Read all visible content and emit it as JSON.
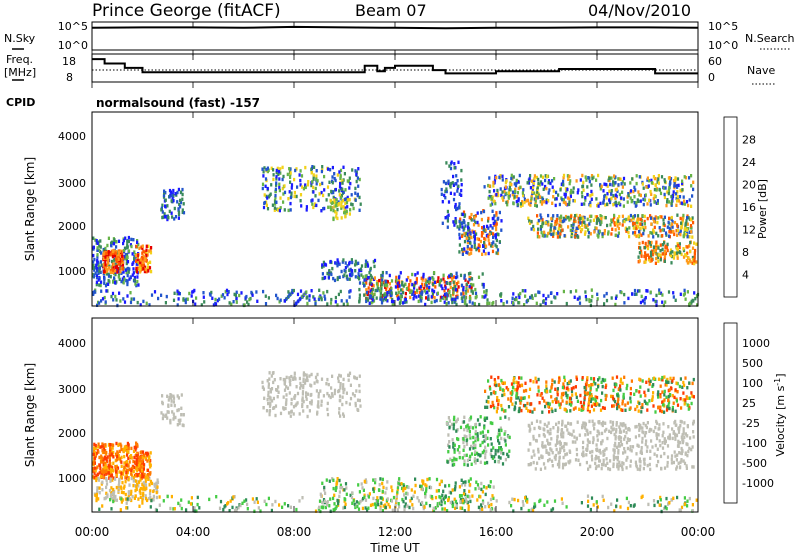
{
  "header": {
    "station": "Prince George (fitACF)",
    "beam": "Beam 07",
    "date": "04/Nov/2010"
  },
  "left_labels": {
    "nsky": "N.Sky",
    "freq_line1": "Freq.",
    "freq_line2": "[MHz]",
    "cpid": "CPID"
  },
  "right_labels": {
    "nsearch": "N.Search",
    "nave": "Nave"
  },
  "cpid_text": "normalsound (fast) -157",
  "colors": {
    "power_scale": [
      "#1a1aff",
      "#2255cc",
      "#3a8a5a",
      "#66b347",
      "#f2d21a",
      "#ff9a1a",
      "#ff5a00",
      "#e60000"
    ],
    "velocity_scale": [
      "#1a33cc",
      "#2255aa",
      "#2e8b57",
      "#44cc44",
      "#bebeb4",
      "#ffb000",
      "#ff7a00",
      "#ff3a00",
      "#e60000"
    ]
  },
  "chart_data": [
    {
      "type": "line",
      "name": "noise",
      "ylabel_left": "N.Sky",
      "ylabel_right": "N.Search",
      "yticks_left": [
        "10^5",
        "10^0"
      ],
      "yticks_right": [
        "10^5",
        "10^0"
      ],
      "x_range_hours": [
        0,
        24
      ],
      "series": [
        {
          "x": [
            0,
            2,
            4,
            6,
            8,
            10,
            12,
            14,
            16,
            18,
            20,
            22,
            24
          ],
          "y": [
            4.2,
            4.3,
            4.3,
            4.2,
            4.4,
            4.3,
            4.2,
            4.1,
            4.2,
            4.2,
            4.3,
            4.3,
            4.2
          ]
        }
      ]
    },
    {
      "type": "line",
      "name": "frequency",
      "ylabel_left": "Freq. [MHz]",
      "ylabel_right": "Nave",
      "yticks_left": [
        "18",
        "8"
      ],
      "yticks_right": [
        "60",
        "0"
      ],
      "x_range_hours": [
        0,
        24
      ],
      "series": [
        {
          "x": [
            0,
            0.5,
            0.5,
            1.3,
            1.3,
            2.0,
            2.0,
            10.8,
            10.8,
            11.3,
            11.3,
            11.6,
            11.6,
            12.0,
            12.0,
            13.5,
            13.5,
            14.0,
            14.0,
            16.0,
            16.0,
            18.5,
            18.5,
            22.3,
            22.3,
            24.0
          ],
          "y": [
            17.5,
            17.5,
            15.5,
            15.5,
            13.5,
            13.5,
            11.5,
            11.5,
            14.5,
            14.5,
            12.0,
            12.0,
            13.5,
            13.5,
            14.5,
            14.5,
            12.5,
            12.5,
            11.0,
            11.0,
            12.0,
            12.0,
            13.0,
            13.0,
            11.0,
            11.0
          ]
        }
      ]
    },
    {
      "type": "heatmap",
      "name": "power",
      "ylabel": "Slant Range [km]",
      "yticks": [
        "1000",
        "2000",
        "3000",
        "4000"
      ],
      "ylim": [
        200,
        4600
      ],
      "colorbar_label": "Power [dB]",
      "colorbar_ticks": [
        "4",
        "8",
        "12",
        "16",
        "20",
        "24",
        "28"
      ],
      "zlim": [
        0,
        30
      ]
    },
    {
      "type": "heatmap",
      "name": "velocity",
      "ylabel": "Slant Range [km]",
      "yticks": [
        "1000",
        "2000",
        "3000",
        "4000"
      ],
      "ylim": [
        200,
        4600
      ],
      "colorbar_label": "Velocity [m s^-1]",
      "colorbar_ticks": [
        "1000",
        "500",
        "100",
        "25",
        "-25",
        "-100",
        "-500",
        "-1000"
      ]
    }
  ],
  "x_axis": {
    "ticks": [
      "00:00",
      "04:00",
      "08:00",
      "12:00",
      "16:00",
      "20:00",
      "00:00"
    ],
    "label": "Time UT"
  }
}
